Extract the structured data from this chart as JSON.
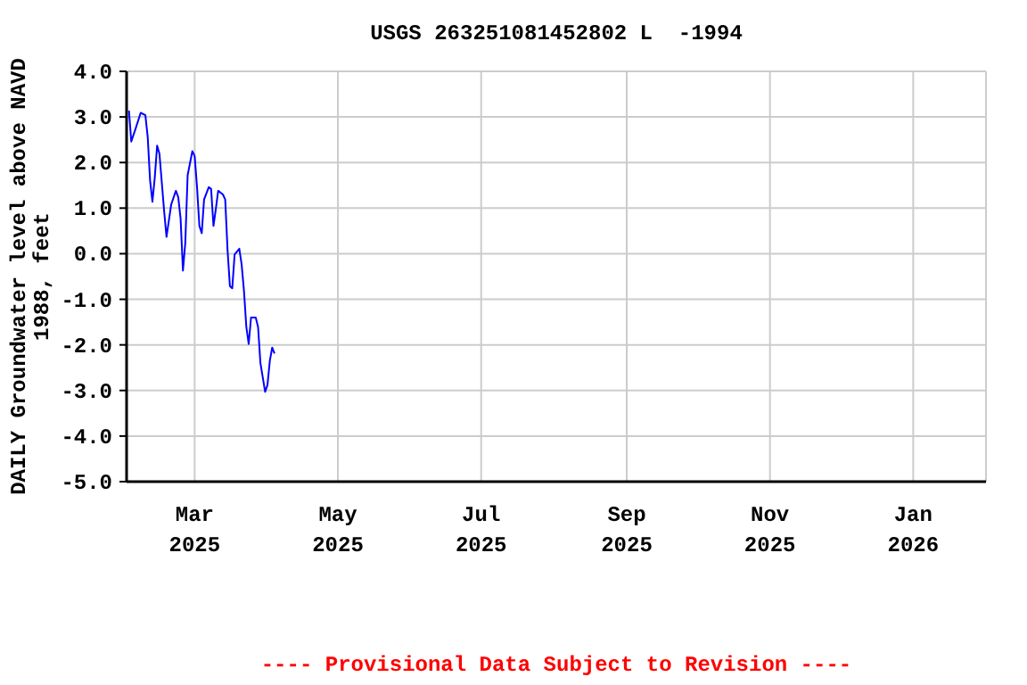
{
  "chart_data": {
    "type": "line",
    "title": "USGS 263251081452802 L  -1994",
    "ylabel": "DAILY Groundwater level above NAVD\n1988, feet",
    "annotations": [
      "---- Provisional Data Subject to Revision ----"
    ],
    "x": [
      "2025-02-01",
      "2025-02-02",
      "2025-02-04",
      "2025-02-06",
      "2025-02-08",
      "2025-02-09",
      "2025-02-10",
      "2025-02-11",
      "2025-02-12",
      "2025-02-13",
      "2025-02-14",
      "2025-02-15",
      "2025-02-16",
      "2025-02-17",
      "2025-02-19",
      "2025-02-21",
      "2025-02-22",
      "2025-02-23",
      "2025-02-24",
      "2025-02-25",
      "2025-02-26",
      "2025-02-28",
      "2025-03-01",
      "2025-03-02",
      "2025-03-03",
      "2025-03-04",
      "2025-03-05",
      "2025-03-07",
      "2025-03-08",
      "2025-03-09",
      "2025-03-10",
      "2025-03-11",
      "2025-03-13",
      "2025-03-14",
      "2025-03-15",
      "2025-03-16",
      "2025-03-17",
      "2025-03-18",
      "2025-03-20",
      "2025-03-21",
      "2025-03-22",
      "2025-03-23",
      "2025-03-24",
      "2025-03-25",
      "2025-03-27",
      "2025-03-28",
      "2025-03-29",
      "2025-03-31",
      "2025-04-01",
      "2025-04-02",
      "2025-04-03",
      "2025-04-04"
    ],
    "series": [
      {
        "color": "#0000ff",
        "values": [
          3.14,
          2.46,
          2.77,
          3.09,
          3.04,
          2.56,
          1.61,
          1.14,
          1.67,
          2.37,
          2.19,
          1.56,
          0.93,
          0.37,
          1.08,
          1.38,
          1.24,
          0.77,
          -0.37,
          0.24,
          1.72,
          2.25,
          2.14,
          1.46,
          0.61,
          0.45,
          1.19,
          1.46,
          1.42,
          0.61,
          0.98,
          1.38,
          1.3,
          1.19,
          0.08,
          -0.71,
          -0.76,
          -0.02,
          0.11,
          -0.24,
          -0.82,
          -1.61,
          -1.98,
          -1.4,
          -1.4,
          -1.61,
          -2.4,
          -3.03,
          -2.88,
          -2.35,
          -2.06,
          -2.19
        ]
      }
    ],
    "xlim": [
      "2025-01-31",
      "2026-02-01"
    ],
    "xticks": [
      {
        "value": "2025-03-01",
        "label": "Mar\n2025"
      },
      {
        "value": "2025-05-01",
        "label": "May\n2025"
      },
      {
        "value": "2025-07-01",
        "label": "Jul\n2025"
      },
      {
        "value": "2025-09-01",
        "label": "Sep\n2025"
      },
      {
        "value": "2025-11-01",
        "label": "Nov\n2025"
      },
      {
        "value": "2026-01-01",
        "label": "Jan\n2026"
      }
    ],
    "ylim": [
      -5,
      4
    ],
    "yticks": [
      {
        "value": 4,
        "label": "4.0"
      },
      {
        "value": 3,
        "label": "3.0"
      },
      {
        "value": 2,
        "label": "2.0"
      },
      {
        "value": 1,
        "label": "1.0"
      },
      {
        "value": 0,
        "label": "0.0"
      },
      {
        "value": -1,
        "label": "-1.0"
      },
      {
        "value": -2,
        "label": "-2.0"
      },
      {
        "value": -3,
        "label": "-3.0"
      },
      {
        "value": -4,
        "label": "-4.0"
      },
      {
        "value": -5,
        "label": "-5.0"
      }
    ],
    "grid": true,
    "legend": false,
    "marker": "none",
    "line_style": "solid"
  }
}
